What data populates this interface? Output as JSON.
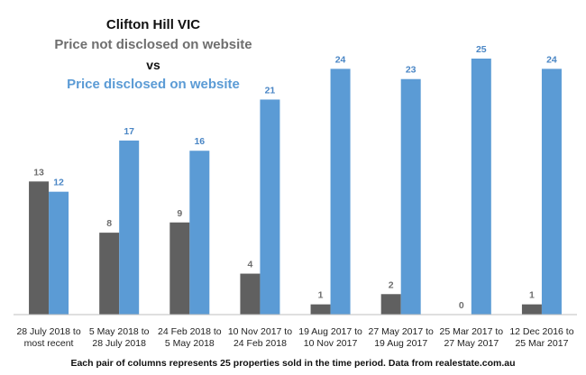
{
  "chart_data": {
    "type": "bar",
    "title": "Clifton Hill VIC",
    "subtitle_line1": "Price not disclosed on website",
    "subtitle_vs": "vs",
    "subtitle_line2": "Price disclosed on website",
    "categories": [
      [
        "28 July 2018 to",
        "most recent"
      ],
      [
        "5 May 2018 to",
        "28 July 2018"
      ],
      [
        "24 Feb 2018 to",
        "5 May 2018"
      ],
      [
        "10 Nov 2017 to",
        "24 Feb 2018"
      ],
      [
        "19 Aug 2017 to",
        "10 Nov 2017"
      ],
      [
        "27 May 2017 to",
        "19 Aug 2017"
      ],
      [
        "25 Mar 2017 to",
        "27 May 2017"
      ],
      [
        "12 Dec 2016 to",
        "25 Mar 2017"
      ]
    ],
    "series": [
      {
        "values": [
          13,
          8,
          9,
          4,
          1,
          2,
          0,
          1
        ],
        "color": "#606060",
        "label_color": "#6e6e6e"
      },
      {
        "values": [
          12,
          17,
          16,
          21,
          24,
          23,
          25,
          24
        ],
        "color": "#5b9bd5",
        "label_color": "#4a86c5"
      }
    ],
    "ylim": [
      0,
      25
    ],
    "grid": false,
    "legend": "none",
    "footnote": "Each pair of columns represents 25 properties sold in the time period. Data from realestate.com.au"
  }
}
